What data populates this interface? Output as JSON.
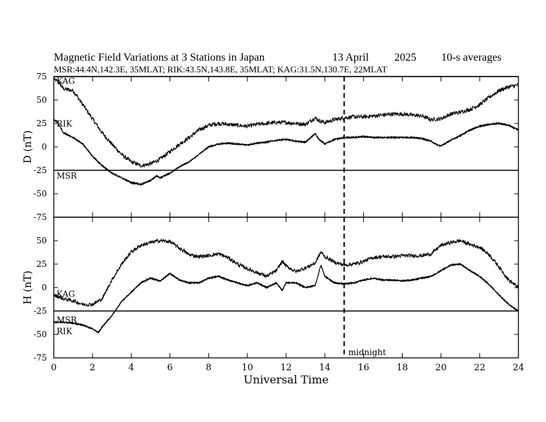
{
  "header": {
    "title": "Magnetic Field Variations at 3 Stations in Japan",
    "date": "13  April",
    "year": "2025",
    "averaging": "10-s averages",
    "stations_line": "MSR:44.4N,142.3E, 35MLAT;  RIK:43.5N,143.8E, 35MLAT;  KAG:31.5N,130.7E, 22MLAT"
  },
  "chart_data": [
    {
      "type": "line",
      "panel": "D",
      "ylabel": "D (nT)",
      "xlabel": "Universal Time",
      "xlim": [
        0,
        24
      ],
      "ylim": [
        -75,
        75
      ],
      "yticks": [
        75,
        50,
        25,
        0,
        -25,
        -50,
        -75
      ],
      "xticks": [
        0,
        2,
        4,
        6,
        8,
        10,
        12,
        14,
        16,
        18,
        20,
        22,
        24
      ],
      "reference_lines": [
        {
          "y": 75
        },
        {
          "y": -25
        }
      ],
      "markers": [
        {
          "x": 15,
          "style": "dashed",
          "label": ""
        }
      ],
      "series": [
        {
          "name": "KAG",
          "noise": 2.2,
          "x": [
            0,
            0.2,
            0.5,
            1,
            1.5,
            2,
            2.5,
            3,
            3.5,
            4,
            4.5,
            5,
            5.5,
            6,
            6.5,
            7,
            7.5,
            8,
            8.5,
            9,
            9.5,
            10,
            10.5,
            11,
            11.5,
            12,
            12.5,
            13,
            13.5,
            13.7,
            14,
            14.5,
            15,
            15.5,
            16,
            16.5,
            17,
            17.5,
            18,
            18.5,
            19,
            19.5,
            20,
            20.5,
            21,
            21.5,
            22,
            22.5,
            23,
            23.5,
            24
          ],
          "y": [
            72,
            70,
            62,
            60,
            45,
            30,
            15,
            3,
            -8,
            -16,
            -20,
            -18,
            -13,
            -5,
            3,
            10,
            18,
            23,
            25,
            24,
            23,
            22,
            24,
            25,
            26,
            26,
            25,
            24,
            31,
            28,
            26,
            29,
            31,
            32,
            32,
            33,
            34,
            35,
            35,
            34,
            33,
            29,
            30,
            35,
            37,
            40,
            45,
            53,
            60,
            64,
            66
          ]
        },
        {
          "name": "RIK",
          "noise": 0.8,
          "x": [
            0,
            0.2,
            0.5,
            1,
            1.5,
            2,
            2.5,
            3,
            3.5,
            4,
            4.5,
            5,
            5.3,
            5.5,
            6,
            6.5,
            7,
            7.5,
            8,
            8.5,
            9,
            9.5,
            10,
            10.5,
            11,
            11.5,
            12,
            12.5,
            13,
            13.5,
            13.7,
            14,
            14.5,
            15,
            15.5,
            16,
            16.5,
            17,
            17.5,
            18,
            18.5,
            19,
            19.5,
            19.8,
            20,
            20.5,
            21,
            21.5,
            22,
            22.5,
            23,
            23.5,
            24
          ],
          "y": [
            29,
            26,
            15,
            10,
            3,
            -10,
            -20,
            -28,
            -33,
            -38,
            -40,
            -36,
            -31,
            -33,
            -28,
            -21,
            -16,
            -8,
            0,
            3,
            4,
            3,
            2,
            4,
            5,
            7,
            8,
            6,
            5,
            14,
            8,
            3,
            8,
            10,
            10,
            11,
            10,
            10,
            10,
            10,
            10,
            9,
            6,
            2,
            1,
            7,
            12,
            18,
            22,
            24,
            25,
            23,
            18
          ]
        },
        {
          "name": "MSR",
          "noise": 0.8,
          "x": [
            0,
            0.2,
            0.5,
            1,
            1.5,
            2,
            2.5,
            3,
            3.5,
            4,
            4.5,
            5,
            5.3,
            5.5,
            6,
            6.5,
            7,
            7.5,
            8,
            8.5,
            9,
            9.5,
            10,
            10.5,
            11,
            11.5,
            12,
            12.5,
            13,
            13.5,
            13.7,
            14,
            14.5,
            15,
            15.5,
            16,
            16.5,
            17,
            17.5,
            18,
            18.5,
            19,
            19.5,
            19.8,
            20,
            20.5,
            21,
            21.5,
            22,
            22.5,
            23,
            23.5,
            24
          ],
          "y": [
            29,
            26,
            15,
            10,
            3,
            -10,
            -20,
            -28,
            -33,
            -38,
            -40,
            -36,
            -31,
            -33,
            -28,
            -21,
            -16,
            -8,
            0,
            3,
            4,
            3,
            2,
            4,
            5,
            7,
            8,
            6,
            5,
            14,
            8,
            3,
            8,
            10,
            10,
            11,
            10,
            10,
            10,
            10,
            10,
            9,
            6,
            2,
            1,
            7,
            12,
            18,
            22,
            24,
            25,
            23,
            18
          ]
        }
      ]
    },
    {
      "type": "line",
      "panel": "H",
      "ylabel": "H (nT)",
      "xlabel": "Universal Time",
      "xlim": [
        0,
        24
      ],
      "ylim": [
        -75,
        75
      ],
      "yticks": [
        50,
        25,
        0,
        -25,
        -50,
        -75
      ],
      "xticks": [
        0,
        2,
        4,
        6,
        8,
        10,
        12,
        14,
        16,
        18,
        20,
        22,
        24
      ],
      "reference_lines": [
        {
          "y": -25
        }
      ],
      "markers": [
        {
          "x": 15,
          "style": "dashed",
          "label": "midnight"
        }
      ],
      "series": [
        {
          "name": "KAG",
          "noise": 2.0,
          "x": [
            0,
            0.5,
            1,
            1.5,
            2,
            2.5,
            3,
            3.5,
            4,
            4.5,
            5,
            5.5,
            6,
            6.5,
            7,
            7.5,
            8,
            8.5,
            9,
            9.5,
            10,
            10.5,
            11,
            11.5,
            11.8,
            12,
            12.5,
            13,
            13.5,
            13.8,
            14,
            14.5,
            15,
            15.5,
            16,
            16.5,
            17,
            17.5,
            18,
            18.5,
            19,
            19.5,
            20,
            20.5,
            21,
            21.5,
            22,
            22.5,
            23,
            23.5,
            24
          ],
          "y": [
            -8,
            -12,
            -14,
            -18,
            -18,
            -12,
            8,
            25,
            38,
            45,
            48,
            50,
            49,
            42,
            35,
            33,
            34,
            36,
            32,
            25,
            20,
            16,
            12,
            18,
            28,
            23,
            17,
            21,
            26,
            38,
            33,
            27,
            24,
            25,
            28,
            32,
            33,
            33,
            34,
            34,
            34,
            36,
            45,
            48,
            50,
            46,
            43,
            35,
            22,
            8,
            0
          ]
        },
        {
          "name": "MSR",
          "noise": 0.8,
          "x": [
            0,
            0.5,
            1,
            1.5,
            2,
            2.3,
            2.5,
            3,
            3.5,
            4,
            4.5,
            5,
            5.5,
            6,
            6.5,
            7,
            7.5,
            8,
            8.5,
            9,
            9.5,
            10,
            10.5,
            11,
            11.5,
            11.8,
            12,
            12.5,
            13,
            13.5,
            13.8,
            14,
            14.5,
            15,
            15.5,
            16,
            16.5,
            17,
            17.5,
            18,
            18.5,
            19,
            19.5,
            20,
            20.5,
            21,
            21.5,
            22,
            22.5,
            23,
            23.5,
            24
          ],
          "y": [
            -37,
            -37,
            -38,
            -40,
            -44,
            -48,
            -42,
            -30,
            -15,
            -5,
            5,
            10,
            7,
            15,
            8,
            5,
            5,
            10,
            12,
            8,
            5,
            2,
            5,
            0,
            5,
            -3,
            5,
            5,
            0,
            2,
            24,
            12,
            5,
            4,
            5,
            8,
            10,
            8,
            8,
            7,
            8,
            10,
            12,
            18,
            24,
            25,
            18,
            12,
            3,
            -8,
            -18,
            -25
          ]
        },
        {
          "name": "RIK",
          "noise": 0.8,
          "x": [
            0,
            0.5,
            1,
            1.5,
            2,
            2.3,
            2.5,
            3,
            3.5,
            4,
            4.5,
            5,
            5.5,
            6,
            6.5,
            7,
            7.5,
            8,
            8.5,
            9,
            9.5,
            10,
            10.5,
            11,
            11.5,
            11.8,
            12,
            12.5,
            13,
            13.5,
            13.8,
            14,
            14.5,
            15,
            15.5,
            16,
            16.5,
            17,
            17.5,
            18,
            18.5,
            19,
            19.5,
            20,
            20.5,
            21,
            21.5,
            22,
            22.5,
            23,
            23.5,
            24
          ],
          "y": [
            -37,
            -37,
            -38,
            -40,
            -44,
            -48,
            -42,
            -30,
            -15,
            -5,
            5,
            10,
            7,
            15,
            8,
            5,
            5,
            10,
            12,
            8,
            5,
            2,
            5,
            0,
            5,
            -3,
            5,
            5,
            0,
            2,
            24,
            12,
            5,
            4,
            5,
            8,
            10,
            8,
            8,
            7,
            8,
            10,
            12,
            18,
            24,
            25,
            18,
            12,
            3,
            -8,
            -18,
            -25
          ]
        }
      ]
    }
  ]
}
